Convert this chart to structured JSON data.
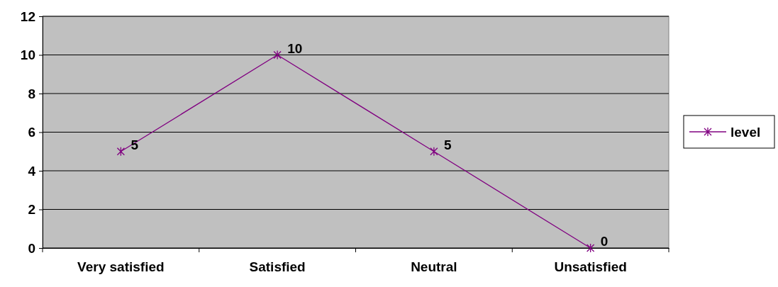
{
  "chart_data": {
    "type": "line",
    "categories": [
      "Very satisfied",
      "Satisfied",
      "Neutral",
      "Unsatisfied"
    ],
    "series": [
      {
        "name": "level",
        "color": "#800080",
        "values": [
          5,
          10,
          5,
          0
        ]
      }
    ],
    "ylim": [
      0,
      12
    ],
    "yticks": [
      0,
      2,
      4,
      6,
      8,
      10,
      12
    ],
    "grid": "y",
    "legend": "right",
    "marker": "cross",
    "line_style": "solid",
    "data_labels": true
  }
}
